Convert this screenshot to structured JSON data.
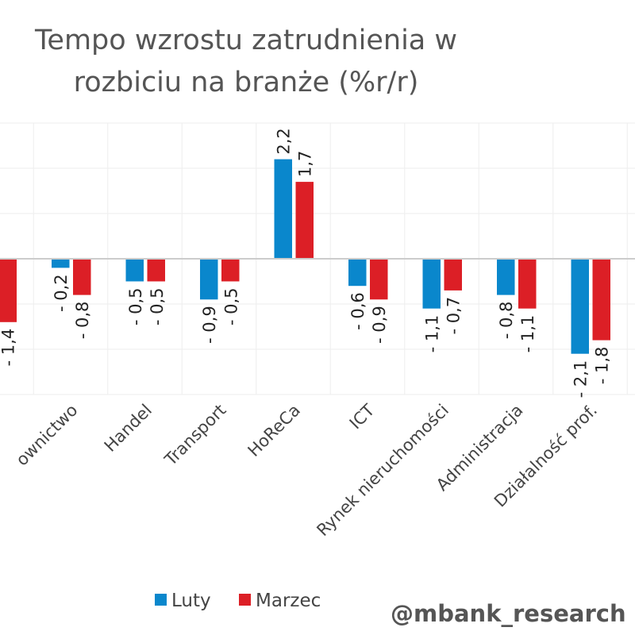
{
  "chart_data": {
    "type": "bar",
    "title": "Tempo wzrostu zatrudnienia w rozbiciu na branże (%r/r)",
    "title_lines": [
      "Tempo wzrostu zatrudnienia w",
      "rozbiciu na branże (%r/r)"
    ],
    "categories": [
      "",
      "Budownictwo",
      "Handel",
      "Transport",
      "HoReCa",
      "ICT",
      "Rynek nieruchomości",
      "Administracja",
      "Działalność prof."
    ],
    "category_labels_visible": [
      "",
      "ownictwo",
      "Handel",
      "Transport",
      "HoReCa",
      "ICT",
      "Rynek nieruchomości",
      "Administracja",
      "Działalność prof."
    ],
    "series": [
      {
        "name": "Luty",
        "color": "#0A87CC",
        "values": [
          null,
          -0.2,
          -0.5,
          -0.9,
          2.2,
          -0.6,
          -1.1,
          -0.8,
          -2.1
        ]
      },
      {
        "name": "Marzec",
        "color": "#DC1F26",
        "values": [
          -1.4,
          -0.8,
          -0.5,
          -0.5,
          1.7,
          -0.9,
          -0.7,
          -1.1,
          -1.8
        ]
      }
    ],
    "ylim": [
      -3,
      3
    ],
    "grid": true,
    "legend": "bottom",
    "decimal_separator": ","
  },
  "watermark": "@mbank_research"
}
